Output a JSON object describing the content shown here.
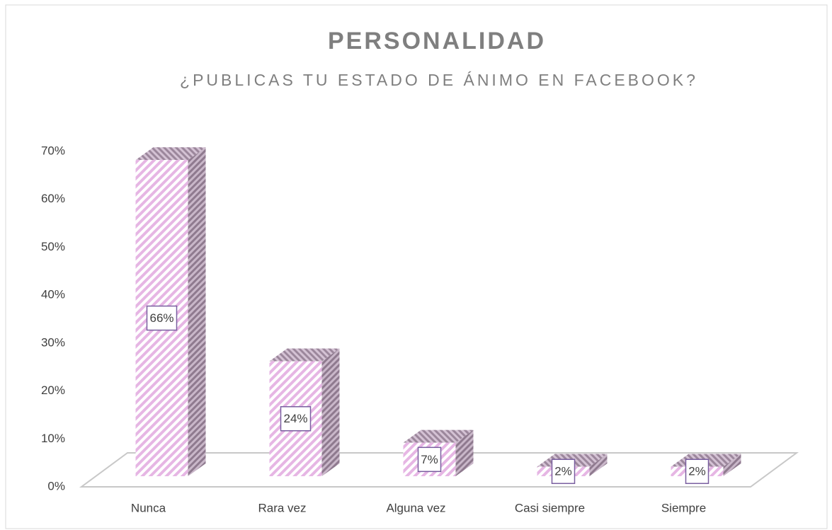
{
  "chart_data": {
    "type": "bar3d",
    "title": "PERSONALIDAD",
    "subtitle": "¿PUBLICAS TU ESTADO DE ÁNIMO EN FACEBOOK?",
    "categories": [
      "Nunca",
      "Rara vez",
      "Alguna vez",
      "Casi siempre",
      "Siempre"
    ],
    "values": [
      66,
      24,
      7,
      2,
      2
    ],
    "value_labels": [
      "66%",
      "24%",
      "7%",
      "2%",
      "2%"
    ],
    "color": "#e8b8e6",
    "ylim": [
      0,
      70
    ],
    "yticks": [
      {
        "value": 0,
        "label": "0%"
      },
      {
        "value": 10,
        "label": "10%"
      },
      {
        "value": 20,
        "label": "20%"
      },
      {
        "value": 30,
        "label": "30%"
      },
      {
        "value": 40,
        "label": "40%"
      },
      {
        "value": 50,
        "label": "50%"
      },
      {
        "value": 60,
        "label": "60%"
      },
      {
        "value": 70,
        "label": "70%"
      }
    ]
  }
}
